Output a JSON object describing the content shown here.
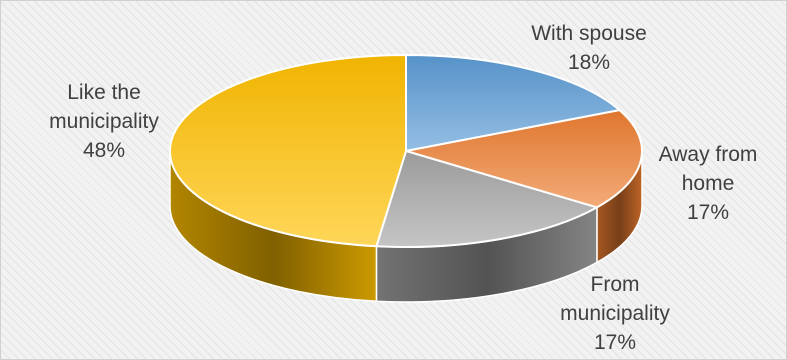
{
  "chart_data": {
    "type": "pie",
    "title": "",
    "slices": [
      {
        "name": "With spouse",
        "value": 18,
        "label": "18%",
        "color": "#5b9bd5"
      },
      {
        "name": "Away from home",
        "value": 17,
        "label": "17%",
        "color": "#ed7d31"
      },
      {
        "name": "From municipality",
        "value": 17,
        "label": "17%",
        "color": "#a5a5a5"
      },
      {
        "name": "Like the municipality",
        "value": 48,
        "label": "48%",
        "color": "#ffc000"
      }
    ],
    "style": "3d-pie",
    "legend": "none",
    "data_labels": "category-and-percent, outside"
  }
}
